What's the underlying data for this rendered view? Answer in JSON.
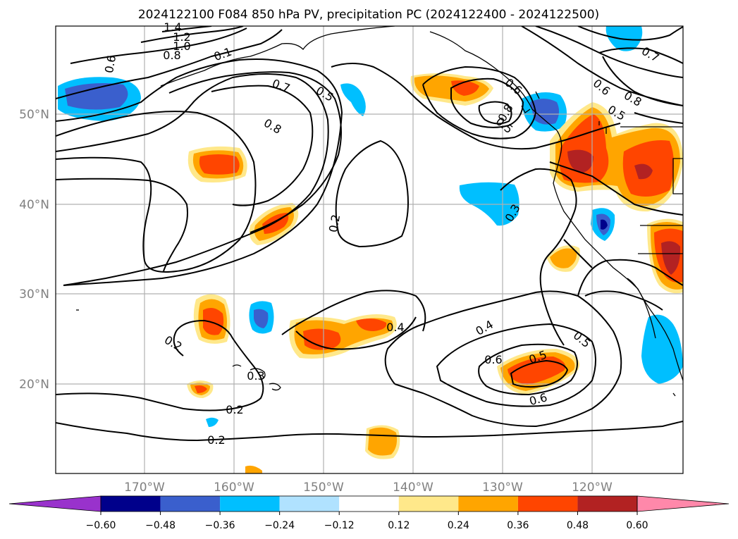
{
  "title": "2024122100 F084 850 hPa PV, precipitation PC (2024122400 - 2024122500)",
  "lat_labels": [
    "50°N",
    "40°N",
    "30°N",
    "20°N"
  ],
  "lon_labels": [
    "170°W",
    "160°W",
    "150°W",
    "140°W",
    "130°W",
    "120°W"
  ],
  "colorbar": {
    "ticks": [
      "−0.60",
      "−0.48",
      "−0.36",
      "−0.24",
      "−0.12",
      "0.12",
      "0.24",
      "0.36",
      "0.48",
      "0.60"
    ],
    "colors": [
      "#9932cc",
      "#00008b",
      "#3a5fcd",
      "#00bfff",
      "#b0e2ff",
      "#ffffff",
      "#ffe88a",
      "#ffa500",
      "#ff4500",
      "#b22222",
      "#ff88aa"
    ]
  },
  "contour_labels": [
    "1.4",
    "1.2",
    "1.0",
    "0.8",
    "0.6",
    "0.1",
    "0.7",
    "0.5",
    "0.8",
    "0.2",
    "0.6",
    "0.8",
    "0.6",
    "0.8",
    "0.5",
    "0.7",
    "0.5",
    "0.3",
    "0.2",
    "0.3",
    "0.2",
    "0.2",
    "0.4",
    "0.4",
    "0.5",
    "0.6",
    "0.5",
    "0.6"
  ],
  "map_extent": {
    "lon": [
      "180°W",
      "110°W"
    ],
    "lat": [
      "10°N",
      "60°N"
    ]
  }
}
